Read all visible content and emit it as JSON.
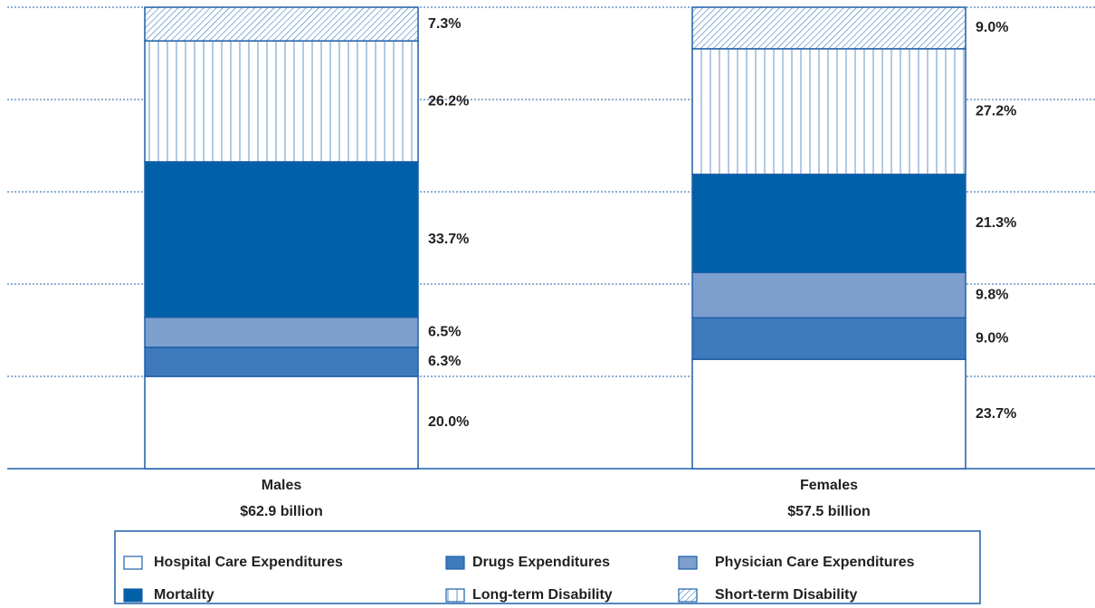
{
  "chart_data": {
    "type": "stacked_bar",
    "categories": [
      "Males",
      "Females"
    ],
    "category_notes": [
      "$62.9 billion",
      "$57.5 billion"
    ],
    "ylim": [
      0,
      100
    ],
    "yticks": [
      0,
      20,
      40,
      60,
      80,
      100
    ],
    "grid": true,
    "series": [
      {
        "name": "Hospital Care Expenditures",
        "color": "#ffffff",
        "values": [
          20.0,
          23.7
        ],
        "value_labels": [
          "20.0%",
          "23.7%"
        ]
      },
      {
        "name": "Drugs Expenditures",
        "color": "#3f7abd",
        "values": [
          6.3,
          9.0
        ],
        "value_labels": [
          "6.3%",
          "9.0%"
        ]
      },
      {
        "name": "Physician Care Expenditures",
        "color": "#7d9fce",
        "values": [
          6.5,
          9.8
        ],
        "value_labels": [
          "6.5%",
          "9.8%"
        ]
      },
      {
        "name": "Mortality",
        "color": "#0060a8",
        "values": [
          33.7,
          21.3
        ],
        "value_labels": [
          "33.7%",
          "21.3%"
        ]
      },
      {
        "name": "Long-term Disability",
        "color": "#3f7abd",
        "pattern": "vertical",
        "values": [
          26.2,
          27.2
        ],
        "value_labels": [
          "26.2%",
          "27.2%"
        ]
      },
      {
        "name": "Short-term Disability",
        "color": "#3f7abd",
        "pattern": "diagonal",
        "values": [
          7.3,
          9.0
        ],
        "value_labels": [
          "7.3%",
          "9.0%"
        ]
      }
    ]
  }
}
